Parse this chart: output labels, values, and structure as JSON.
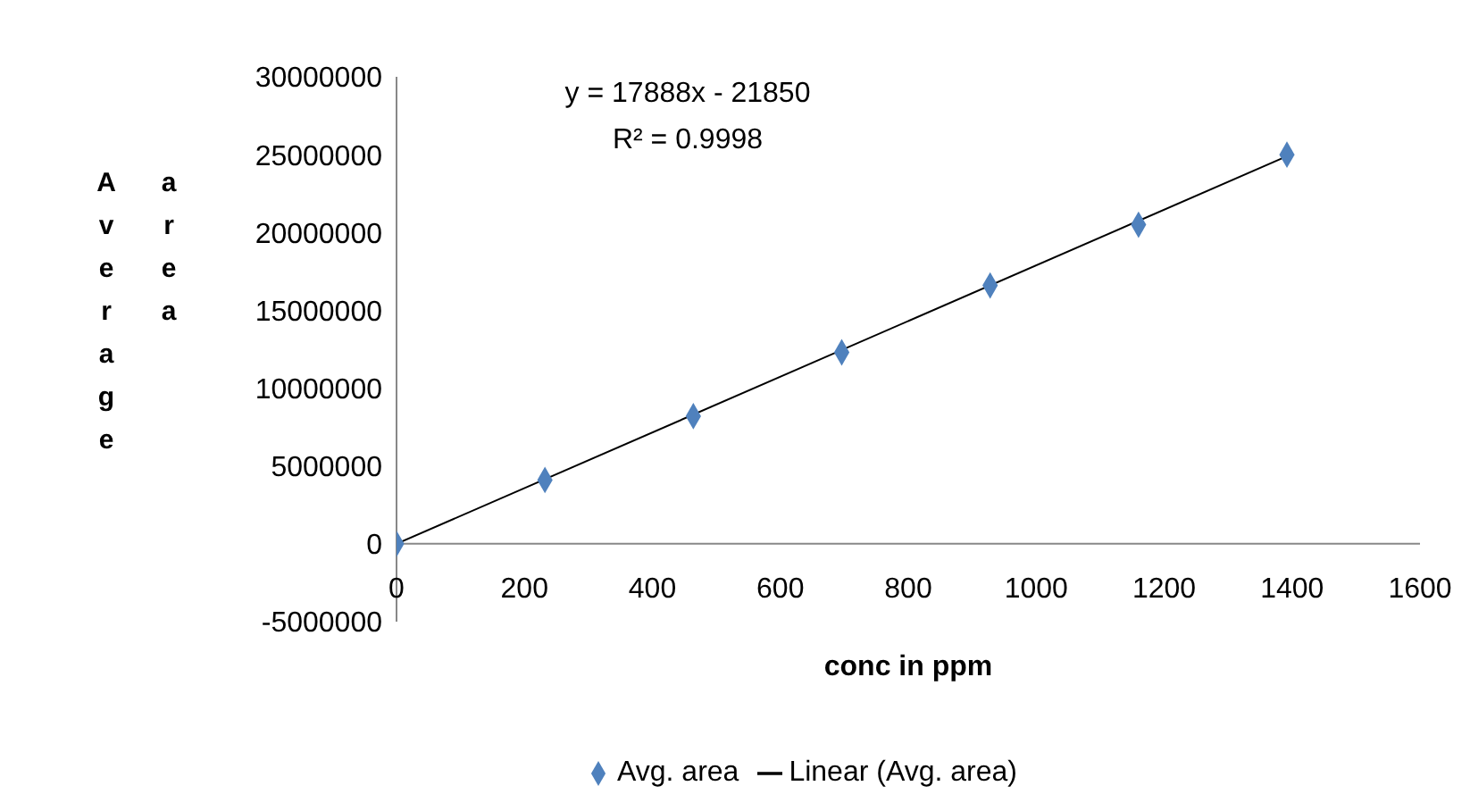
{
  "chart_data": {
    "type": "scatter",
    "xlabel": "conc in ppm",
    "ylabel": "Average area",
    "x": [
      0,
      232,
      464,
      696,
      928,
      1160,
      1392
    ],
    "xlim": [
      0,
      1600
    ],
    "xticks": [
      0,
      200,
      400,
      600,
      800,
      1000,
      1200,
      1400,
      1600
    ],
    "ylim": [
      -5000000,
      30000000
    ],
    "yticks": [
      -5000000,
      0,
      5000000,
      10000000,
      15000000,
      20000000,
      25000000,
      30000000
    ],
    "marker": "diamond",
    "legend": "bottom",
    "annotations": [
      "y = 17888x - 21850",
      "R² = 0.9998"
    ],
    "series": [
      {
        "name": "Avg. area",
        "color": "#4f81bd",
        "values": [
          0,
          4100000,
          8200000,
          12300000,
          16600000,
          20500000,
          25000000
        ]
      },
      {
        "name": "Linear (Avg. area)",
        "type": "line",
        "marker": "none",
        "color": "#000000",
        "x": [
          0,
          1392
        ],
        "values": [
          0,
          24900000
        ]
      }
    ]
  }
}
